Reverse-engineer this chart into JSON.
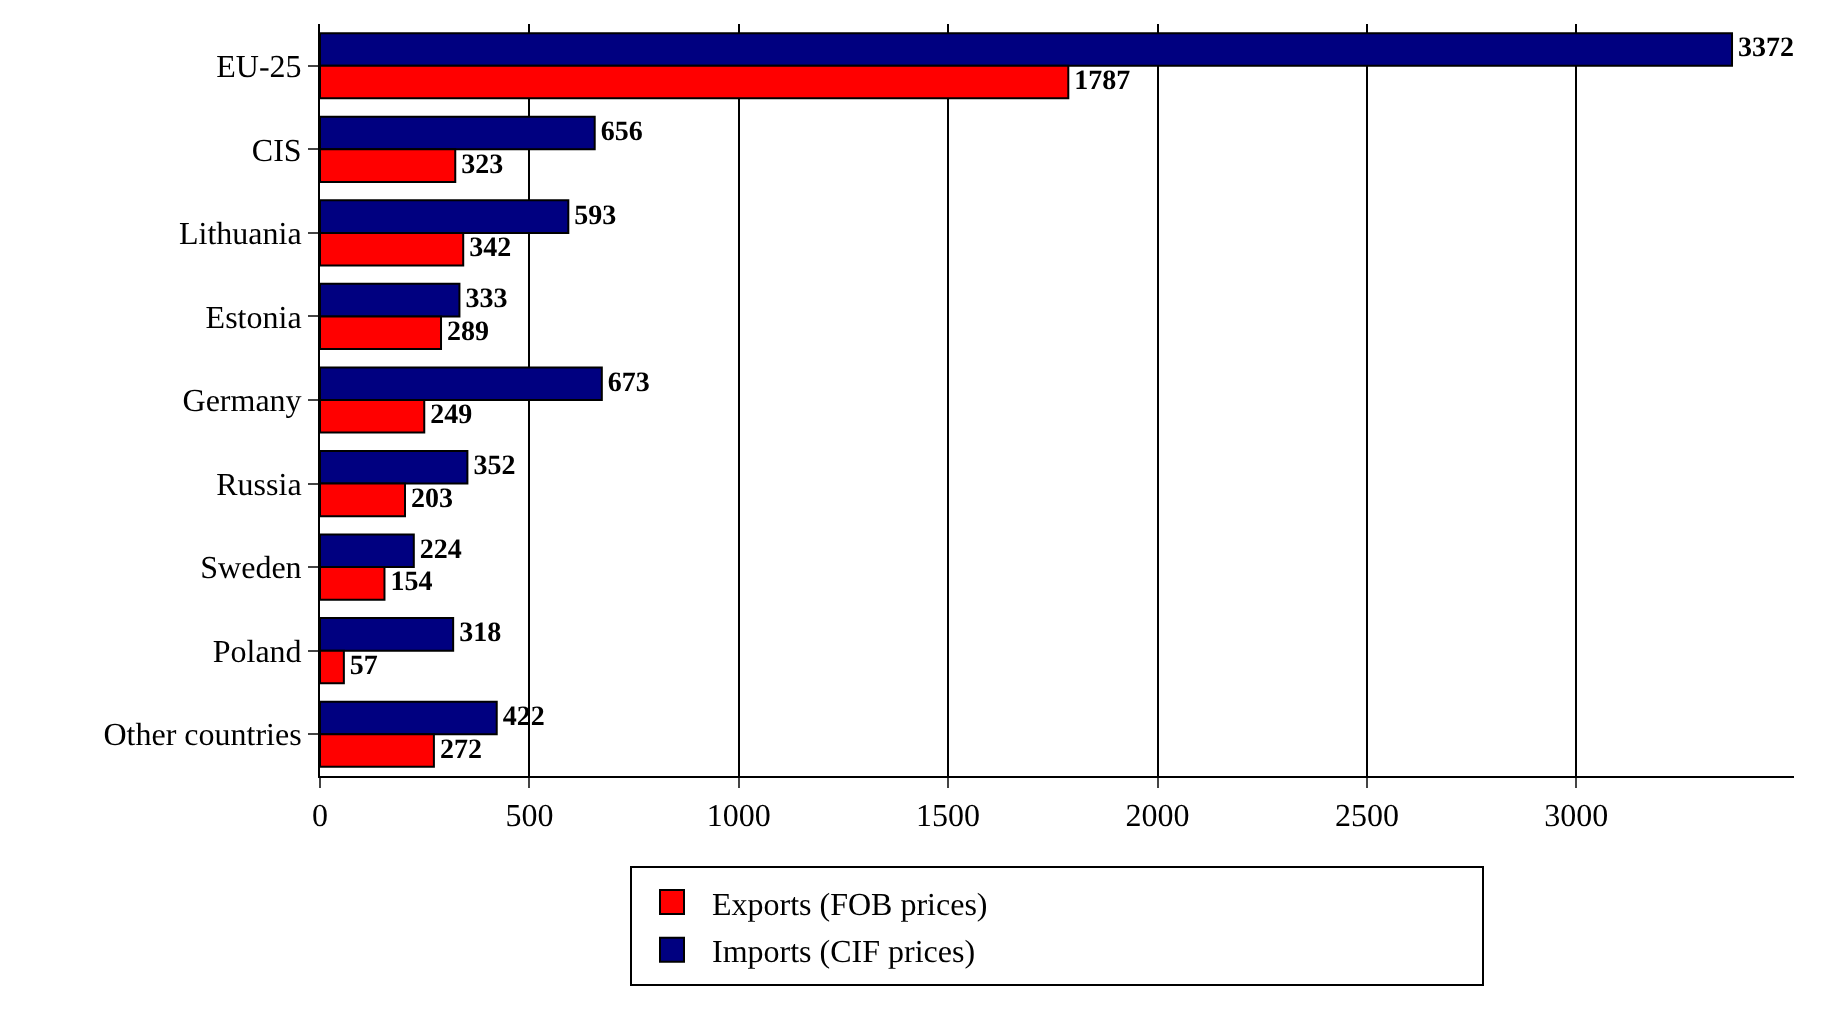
{
  "chart_data": {
    "type": "bar",
    "orientation": "horizontal",
    "categories": [
      "EU-25",
      "CIS",
      "Lithuania",
      "Estonia",
      "Germany",
      "Russia",
      "Sweden",
      "Poland",
      "Other countries"
    ],
    "series": [
      {
        "name": "Imports (CIF prices)",
        "color": "#000080",
        "values": [
          3372,
          656,
          593,
          333,
          673,
          352,
          224,
          318,
          422
        ]
      },
      {
        "name": "Exports (FOB prices)",
        "color": "#ff0000",
        "values": [
          1787,
          323,
          342,
          289,
          249,
          203,
          154,
          57,
          272
        ]
      }
    ],
    "xlim": [
      0,
      3520
    ],
    "xticks": [
      0,
      500,
      1000,
      1500,
      2000,
      2500,
      3000
    ],
    "grid": "x",
    "legend": "bottom",
    "data_labels": true
  }
}
